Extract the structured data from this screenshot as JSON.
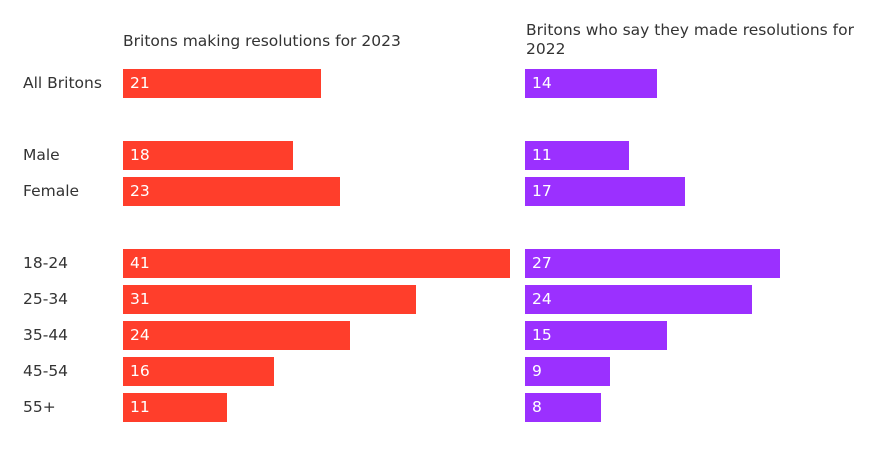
{
  "chart_data": {
    "type": "bar",
    "orientation": "horizontal",
    "categories": [
      "All Britons",
      "Male",
      "Female",
      "18-24",
      "25-34",
      "35-44",
      "45-54",
      "55+"
    ],
    "groups": [
      [
        "All Britons"
      ],
      [
        "Male",
        "Female"
      ],
      [
        "18-24",
        "25-34",
        "35-44",
        "45-54",
        "55+"
      ]
    ],
    "series": [
      {
        "name": "Britons making resolutions for 2023",
        "color": "#ff3e2b",
        "values": [
          21,
          18,
          23,
          41,
          31,
          24,
          16,
          11
        ]
      },
      {
        "name": "Britons who say they made resolutions for 2022",
        "color": "#9b30ff",
        "values": [
          14,
          11,
          17,
          27,
          24,
          15,
          9,
          8
        ]
      }
    ],
    "xlim": [
      0,
      41
    ],
    "grid": false,
    "data_labels": "inside-left"
  }
}
